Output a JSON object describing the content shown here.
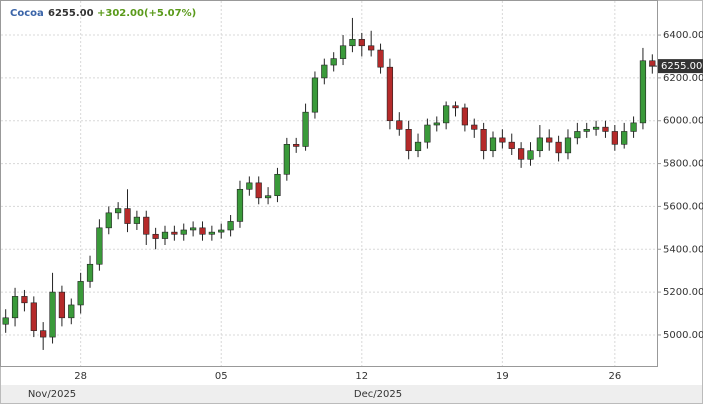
{
  "chart_data": {
    "type": "candlestick",
    "title": "Cocoa",
    "last_value": {
      "value": 6255,
      "label": "6255.00"
    },
    "change_label": "+302.00(+5.07%)",
    "periods": [
      "Nov/2025",
      "Dec/2025"
    ],
    "categories": [
      null,
      null,
      null,
      null,
      null,
      null,
      null,
      null,
      "28",
      null,
      null,
      null,
      null,
      null,
      null,
      null,
      null,
      null,
      null,
      null,
      null,
      null,
      null,
      "05",
      null,
      null,
      null,
      null,
      null,
      null,
      null,
      null,
      null,
      null,
      null,
      null,
      null,
      null,
      "12",
      null,
      null,
      null,
      null,
      null,
      null,
      null,
      null,
      null,
      null,
      null,
      null,
      null,
      null,
      "19",
      null,
      null,
      null,
      null,
      null,
      null,
      null,
      null,
      null,
      null,
      null,
      "26",
      null,
      null,
      null,
      null
    ],
    "open": [
      5050,
      5080,
      5180,
      5150,
      5020,
      4990,
      5200,
      5080,
      5140,
      5250,
      5330,
      5500,
      5570,
      5590,
      5520,
      5550,
      5470,
      5450,
      5480,
      5470,
      5490,
      5500,
      5470,
      5480,
      5490,
      5530,
      5680,
      5710,
      5640,
      5650,
      5750,
      5890,
      5880,
      6040,
      6200,
      6260,
      6290,
      6350,
      6380,
      6350,
      6330,
      6250,
      6000,
      5960,
      5860,
      5900,
      5980,
      5990,
      6070,
      6060,
      5980,
      5960,
      5860,
      5920,
      5900,
      5870,
      5820,
      5860,
      5920,
      5900,
      5850,
      5920,
      5950,
      5960,
      5970,
      5950,
      5890,
      5950,
      5990,
      6280
    ],
    "high": [
      5120,
      5220,
      5210,
      5180,
      5060,
      5290,
      5230,
      5170,
      5290,
      5370,
      5540,
      5600,
      5620,
      5680,
      5580,
      5580,
      5500,
      5510,
      5510,
      5520,
      5530,
      5530,
      5510,
      5520,
      5560,
      5720,
      5740,
      5740,
      5690,
      5780,
      5920,
      5920,
      6080,
      6230,
      6290,
      6320,
      6400,
      6480,
      6410,
      6420,
      6360,
      6290,
      6040,
      6000,
      5940,
      6010,
      6020,
      6090,
      6090,
      6080,
      6010,
      5990,
      5950,
      5960,
      5940,
      5900,
      5900,
      5980,
      5960,
      5930,
      5960,
      5990,
      5990,
      6000,
      6000,
      5980,
      5990,
      6020,
      6340,
      6310
    ],
    "low": [
      5010,
      5040,
      5110,
      4990,
      4930,
      4960,
      5040,
      5050,
      5100,
      5220,
      5300,
      5470,
      5540,
      5480,
      5490,
      5420,
      5400,
      5420,
      5440,
      5440,
      5460,
      5440,
      5440,
      5450,
      5460,
      5500,
      5650,
      5610,
      5610,
      5620,
      5720,
      5850,
      5860,
      6010,
      6170,
      6230,
      6260,
      6320,
      6300,
      6300,
      6220,
      5960,
      5930,
      5820,
      5830,
      5870,
      5950,
      5960,
      6020,
      5950,
      5920,
      5820,
      5830,
      5870,
      5840,
      5780,
      5790,
      5830,
      5860,
      5810,
      5820,
      5890,
      5920,
      5930,
      5920,
      5860,
      5870,
      5920,
      5960,
      6220
    ],
    "close": [
      5080,
      5180,
      5150,
      5020,
      4990,
      5200,
      5080,
      5140,
      5250,
      5330,
      5500,
      5570,
      5590,
      5520,
      5550,
      5470,
      5450,
      5480,
      5470,
      5490,
      5500,
      5470,
      5480,
      5490,
      5530,
      5680,
      5710,
      5640,
      5650,
      5750,
      5890,
      5880,
      6040,
      6200,
      6260,
      6290,
      6350,
      6380,
      6350,
      6330,
      6250,
      6000,
      5960,
      5860,
      5900,
      5980,
      5990,
      6070,
      6060,
      5980,
      5960,
      5860,
      5920,
      5900,
      5870,
      5820,
      5860,
      5920,
      5900,
      5850,
      5920,
      5950,
      5960,
      5970,
      5950,
      5890,
      5950,
      5990,
      6280,
      6255
    ],
    "up_color": "#3a9a3a",
    "down_color": "#b52a2a",
    "ylim": [
      4855,
      6559
    ],
    "yticks": [
      {
        "value": 5000,
        "label": "5000.00"
      },
      {
        "value": 5200,
        "label": "5200.00"
      },
      {
        "value": 5400,
        "label": "5400.00"
      },
      {
        "value": 5600,
        "label": "5600.00"
      },
      {
        "value": 5800,
        "label": "5800.00"
      },
      {
        "value": 6000,
        "label": "6000.00"
      },
      {
        "value": 6200,
        "label": "6200.00"
      },
      {
        "value": 6400,
        "label": "6400.00"
      }
    ],
    "grid": true
  }
}
